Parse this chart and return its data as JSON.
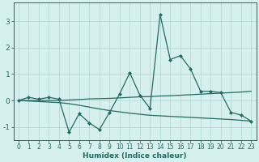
{
  "xlabel": "Humidex (Indice chaleur)",
  "x": [
    0,
    1,
    2,
    3,
    4,
    5,
    6,
    7,
    8,
    9,
    10,
    11,
    12,
    13,
    14,
    15,
    16,
    17,
    18,
    19,
    20,
    21,
    22,
    23
  ],
  "line1": [
    0.0,
    0.12,
    0.05,
    0.12,
    0.05,
    -1.2,
    -0.5,
    -0.85,
    -1.1,
    -0.45,
    0.25,
    1.05,
    0.2,
    -0.3,
    3.25,
    1.55,
    1.7,
    1.2,
    0.35,
    0.35,
    0.3,
    -0.45,
    -0.55,
    -0.78
  ],
  "line2": [
    0.0,
    0.0,
    0.0,
    0.0,
    0.0,
    0.02,
    0.04,
    0.06,
    0.07,
    0.08,
    0.1,
    0.12,
    0.14,
    0.15,
    0.17,
    0.18,
    0.2,
    0.22,
    0.24,
    0.26,
    0.28,
    0.3,
    0.32,
    0.35
  ],
  "line3": [
    0.0,
    -0.02,
    -0.04,
    -0.06,
    -0.08,
    -0.12,
    -0.18,
    -0.25,
    -0.32,
    -0.38,
    -0.43,
    -0.48,
    -0.52,
    -0.56,
    -0.58,
    -0.6,
    -0.62,
    -0.64,
    -0.66,
    -0.68,
    -0.7,
    -0.72,
    -0.75,
    -0.78
  ],
  "background_color": "#d6efef",
  "line_color": "#236b62",
  "grid_color": "#b8d8d8",
  "ylim": [
    -1.5,
    3.7
  ],
  "yticks": [
    -1,
    0,
    1,
    2,
    3
  ],
  "xticks": [
    0,
    1,
    2,
    3,
    4,
    5,
    6,
    7,
    8,
    9,
    10,
    11,
    12,
    13,
    14,
    15,
    16,
    17,
    18,
    19,
    20,
    21,
    22,
    23
  ],
  "marker": "D",
  "marker_size": 2.0,
  "line_width": 0.9,
  "tick_fontsize": 5.5,
  "xlabel_fontsize": 6.5
}
